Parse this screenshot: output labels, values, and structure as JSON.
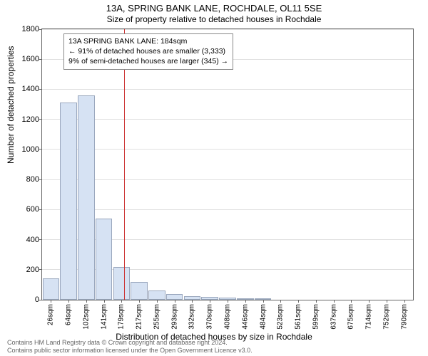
{
  "title_main": "13A, SPRING BANK LANE, ROCHDALE, OL11 5SE",
  "title_sub": "Size of property relative to detached houses in Rochdale",
  "y_axis_label": "Number of detached properties",
  "x_axis_label": "Distribution of detached houses by size in Rochdale",
  "footer_line1": "Contains HM Land Registry data © Crown copyright and database right 2024.",
  "footer_line2": "Contains public sector information licensed under the Open Government Licence v3.0.",
  "chart": {
    "type": "bar",
    "ylim": [
      0,
      1800
    ],
    "ytick_step": 200,
    "x_categories": [
      "26sqm",
      "64sqm",
      "102sqm",
      "141sqm",
      "179sqm",
      "217sqm",
      "255sqm",
      "293sqm",
      "332sqm",
      "370sqm",
      "408sqm",
      "446sqm",
      "484sqm",
      "523sqm",
      "561sqm",
      "599sqm",
      "637sqm",
      "675sqm",
      "714sqm",
      "752sqm",
      "790sqm"
    ],
    "values": [
      140,
      1310,
      1360,
      540,
      220,
      120,
      60,
      40,
      25,
      20,
      15,
      10,
      10,
      0,
      0,
      0,
      0,
      0,
      0,
      0,
      0
    ],
    "bar_fill": "#d6e2f3",
    "bar_stroke": "#9aa7bd",
    "grid_color": "#e0e0e0",
    "background_color": "#ffffff",
    "reference_line": {
      "x_value_sqm": 184,
      "color": "#cc3333"
    },
    "annotation": {
      "line1": "13A SPRING BANK LANE: 184sqm",
      "line2": "← 91% of detached houses are smaller (3,333)",
      "line3": "9% of semi-detached houses are larger (345) →"
    }
  }
}
